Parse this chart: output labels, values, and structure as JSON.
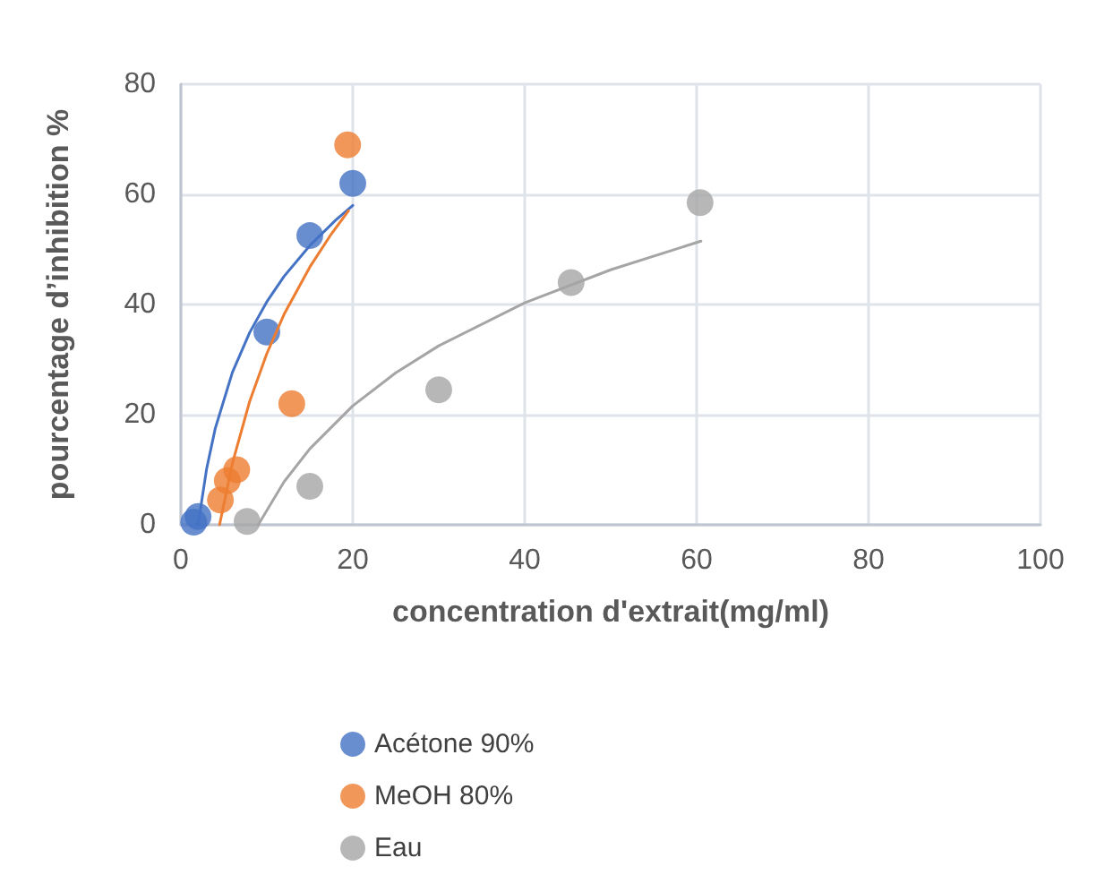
{
  "chart_data": {
    "type": "scatter",
    "xlabel": "concentration d'extrait(mg/ml)",
    "ylabel": "pourcentage d’inhibition %",
    "xlim": [
      0,
      100
    ],
    "xticks": [
      0,
      20,
      40,
      60,
      80,
      100
    ],
    "ylim": [
      0,
      80
    ],
    "yticks": [
      0,
      20,
      40,
      60,
      80
    ],
    "grid": true,
    "legend": "bottom",
    "marker": "circle",
    "series": [
      {
        "name": "Acétone 90%",
        "color": "#4472c4",
        "x": [
          1.5,
          2,
          10,
          15,
          20
        ],
        "values": [
          0.5,
          1.5,
          35,
          52.5,
          62
        ]
      },
      {
        "name": "MeOH 80%",
        "color": "#ed7d31",
        "x": [
          4.6,
          5.4,
          6.5,
          12.9,
          19.4
        ],
        "values": [
          4.5,
          8,
          10,
          22,
          69
        ]
      },
      {
        "name": "Eau",
        "color": "#a5a5a5",
        "x": [
          7.7,
          15,
          30,
          45.4,
          60.4
        ],
        "values": [
          0.6,
          7,
          24.5,
          44,
          58.5
        ]
      },
      {
        "type": "line",
        "color": "#4472c4",
        "marker": "none",
        "x": [
          2,
          3,
          4,
          6,
          8,
          10,
          12,
          15,
          18,
          20
        ],
        "values": [
          0,
          10.2,
          17.5,
          27.7,
          34.9,
          40.5,
          45.1,
          50.7,
          55.3,
          58
        ]
      },
      {
        "type": "line",
        "color": "#ed7d31",
        "marker": "none",
        "x": [
          4.5,
          6,
          8,
          10,
          12,
          15,
          17.5,
          19.5
        ],
        "values": [
          0,
          11.2,
          22.4,
          31.1,
          38.2,
          46.8,
          52.8,
          57
        ]
      },
      {
        "type": "line",
        "color": "#a5a5a5",
        "marker": "none",
        "x": [
          9,
          12,
          15,
          20,
          25,
          30,
          40,
          50,
          60.5
        ],
        "values": [
          0,
          7.8,
          13.8,
          21.6,
          27.6,
          32.5,
          40.3,
          46.3,
          51.5
        ]
      }
    ]
  }
}
